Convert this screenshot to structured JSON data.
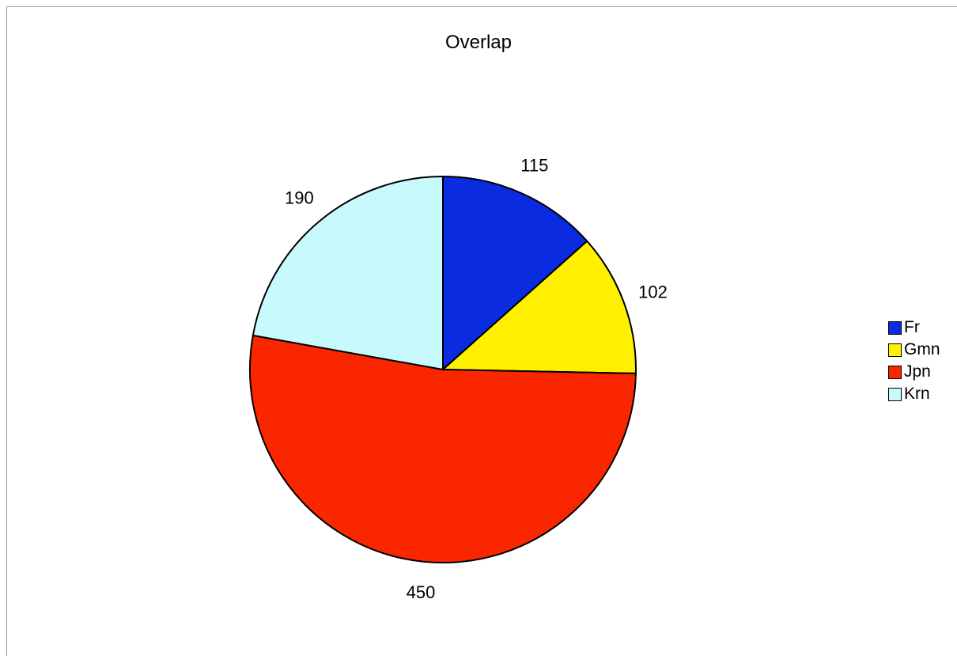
{
  "chart_data": {
    "type": "pie",
    "title": "Overlap",
    "categories": [
      "Fr",
      "Gmn",
      "Jpn",
      "Krn"
    ],
    "values": [
      115,
      102,
      450,
      190
    ],
    "colors": [
      "#0a2be0",
      "#fff000",
      "#fa2600",
      "#c8fafd"
    ],
    "data_labels": [
      "115",
      "102",
      "450",
      "190"
    ],
    "legend_position": "right",
    "start_angle": "12 o'clock",
    "direction": "clockwise"
  },
  "legend": {
    "items": [
      {
        "label": "Fr",
        "color": "#0a2be0"
      },
      {
        "label": "Gmn",
        "color": "#fff000"
      },
      {
        "label": "Jpn",
        "color": "#fa2600"
      },
      {
        "label": "Krn",
        "color": "#c8fafd"
      }
    ]
  }
}
